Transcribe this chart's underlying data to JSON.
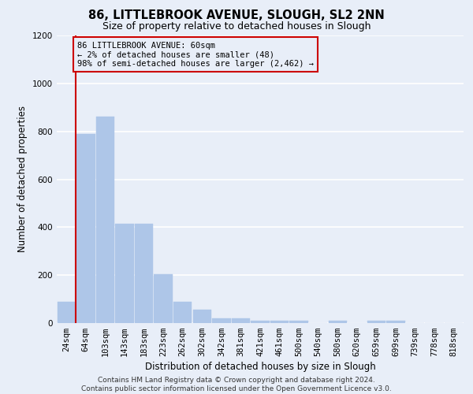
{
  "title": "86, LITTLEBROOK AVENUE, SLOUGH, SL2 2NN",
  "subtitle": "Size of property relative to detached houses in Slough",
  "xlabel": "Distribution of detached houses by size in Slough",
  "ylabel": "Number of detached properties",
  "categories": [
    "24sqm",
    "64sqm",
    "103sqm",
    "143sqm",
    "183sqm",
    "223sqm",
    "262sqm",
    "302sqm",
    "342sqm",
    "381sqm",
    "421sqm",
    "461sqm",
    "500sqm",
    "540sqm",
    "580sqm",
    "620sqm",
    "659sqm",
    "699sqm",
    "739sqm",
    "778sqm",
    "818sqm"
  ],
  "values": [
    90,
    790,
    860,
    415,
    415,
    205,
    90,
    55,
    20,
    20,
    10,
    10,
    10,
    0,
    10,
    0,
    10,
    10,
    0,
    0,
    0
  ],
  "bar_color": "#aec6e8",
  "bar_edge_color": "#aec6e8",
  "highlight_line_color": "#cc0000",
  "ylim": [
    0,
    1200
  ],
  "yticks": [
    0,
    200,
    400,
    600,
    800,
    1000,
    1200
  ],
  "annotation_title": "86 LITTLEBROOK AVENUE: 60sqm",
  "annotation_line1": "← 2% of detached houses are smaller (48)",
  "annotation_line2": "98% of semi-detached houses are larger (2,462) →",
  "annotation_box_color": "#cc0000",
  "footer_line1": "Contains HM Land Registry data © Crown copyright and database right 2024.",
  "footer_line2": "Contains public sector information licensed under the Open Government Licence v3.0.",
  "background_color": "#e8eef8",
  "grid_color": "#ffffff",
  "title_fontsize": 10.5,
  "subtitle_fontsize": 9,
  "axis_label_fontsize": 8.5,
  "tick_fontsize": 7.5,
  "footer_fontsize": 6.5
}
